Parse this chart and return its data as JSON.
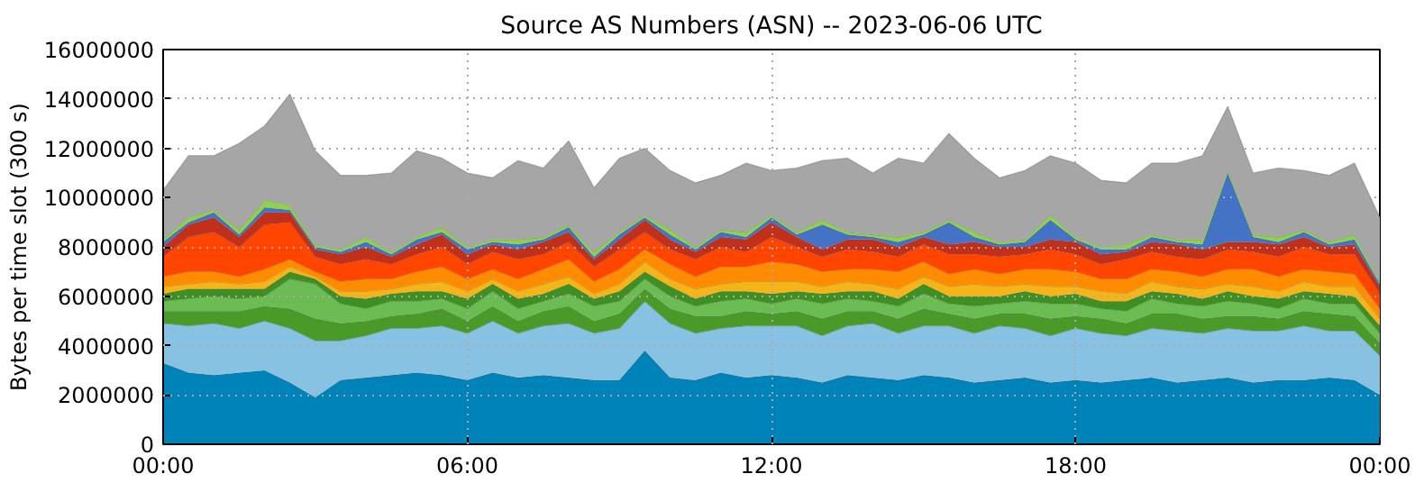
{
  "chart_data": {
    "type": "area",
    "stacked": true,
    "title": "Source AS Numbers (ASN) -- 2023-06-06 UTC",
    "ylabel": "Bytes per time slot (300 s)",
    "x": [
      0,
      0.5,
      1,
      1.5,
      2,
      2.5,
      3,
      3.5,
      4,
      4.5,
      5,
      5.5,
      6,
      6.5,
      7,
      7.5,
      8,
      8.5,
      9,
      9.5,
      10,
      10.5,
      11,
      11.5,
      12,
      12.5,
      13,
      13.5,
      14,
      14.5,
      15,
      15.5,
      16,
      16.5,
      17,
      17.5,
      18,
      18.5,
      19,
      19.5,
      20,
      20.5,
      21,
      21.5,
      22,
      22.5,
      23,
      23.5,
      24
    ],
    "xlim": [
      0,
      24
    ],
    "xticks": [
      {
        "value": 0,
        "label": "00:00"
      },
      {
        "value": 6,
        "label": "06:00"
      },
      {
        "value": 12,
        "label": "12:00"
      },
      {
        "value": 18,
        "label": "18:00"
      },
      {
        "value": 24,
        "label": "00:00"
      }
    ],
    "ylim": [
      0,
      16000000
    ],
    "yticks": [
      0,
      2000000,
      4000000,
      6000000,
      8000000,
      10000000,
      12000000,
      14000000,
      16000000
    ],
    "grid": true,
    "series": [
      {
        "color": "#0083b8",
        "values": [
          3300000.0,
          2900000.0,
          2800000.0,
          2900000.0,
          3000000.0,
          2500000.0,
          1900000.0,
          2600000.0,
          2700000.0,
          2800000.0,
          2900000.0,
          2800000.0,
          2600000.0,
          2900000.0,
          2700000.0,
          2800000.0,
          2700000.0,
          2600000.0,
          2600000.0,
          3800000.0,
          2700000.0,
          2600000.0,
          2900000.0,
          2700000.0,
          2800000.0,
          2700000.0,
          2500000.0,
          2800000.0,
          2700000.0,
          2600000.0,
          2800000.0,
          2700000.0,
          2500000.0,
          2600000.0,
          2700000.0,
          2500000.0,
          2600000.0,
          2500000.0,
          2600000.0,
          2700000.0,
          2500000.0,
          2600000.0,
          2700000.0,
          2500000.0,
          2600000.0,
          2600000.0,
          2700000.0,
          2600000.0,
          2000000.0
        ]
      },
      {
        "color": "#88c2e2",
        "values": [
          1600000.0,
          1900000.0,
          2100000.0,
          1800000.0,
          2000000.0,
          2200000.0,
          2300000.0,
          1600000.0,
          1700000.0,
          1900000.0,
          1800000.0,
          2000000.0,
          1900000.0,
          2100000.0,
          1800000.0,
          2000000.0,
          2200000.0,
          1900000.0,
          2100000.0,
          2000000.0,
          2200000.0,
          1900000.0,
          1800000.0,
          2100000.0,
          2000000.0,
          2100000.0,
          1900000.0,
          2000000.0,
          2200000.0,
          1900000.0,
          2000000.0,
          2100000.0,
          2000000.0,
          2200000.0,
          2000000.0,
          1900000.0,
          2100000.0,
          2000000.0,
          1800000.0,
          2000000.0,
          2100000.0,
          1900000.0,
          2000000.0,
          2100000.0,
          2000000.0,
          2200000.0,
          1900000.0,
          2000000.0,
          1600000.0
        ]
      },
      {
        "color": "#4a9a2a",
        "values": [
          500000.0,
          600000.0,
          500000.0,
          700000.0,
          600000.0,
          800000.0,
          900000.0,
          700000.0,
          600000.0,
          500000.0,
          600000.0,
          700000.0,
          500000.0,
          600000.0,
          500000.0,
          600000.0,
          700000.0,
          500000.0,
          600000.0,
          500000.0,
          600000.0,
          700000.0,
          500000.0,
          600000.0,
          500000.0,
          600000.0,
          700000.0,
          600000.0,
          500000.0,
          600000.0,
          700000.0,
          500000.0,
          600000.0,
          500000.0,
          600000.0,
          700000.0,
          500000.0,
          600000.0,
          500000.0,
          600000.0,
          700000.0,
          600000.0,
          500000.0,
          600000.0,
          500000.0,
          600000.0,
          700000.0,
          600000.0,
          500000.0
        ]
      },
      {
        "color": "#6cbc54",
        "values": [
          400000.0,
          500000.0,
          600000.0,
          500000.0,
          400000.0,
          1200000.0,
          1400000.0,
          800000.0,
          500000.0,
          600000.0,
          500000.0,
          400000.0,
          500000.0,
          600000.0,
          500000.0,
          400000.0,
          500000.0,
          600000.0,
          500000.0,
          400000.0,
          500000.0,
          400000.0,
          600000.0,
          500000.0,
          400000.0,
          500000.0,
          600000.0,
          500000.0,
          400000.0,
          500000.0,
          600000.0,
          400000.0,
          500000.0,
          400000.0,
          500000.0,
          600000.0,
          500000.0,
          400000.0,
          500000.0,
          600000.0,
          400000.0,
          500000.0,
          600000.0,
          500000.0,
          400000.0,
          500000.0,
          400000.0,
          500000.0,
          400000.0
        ]
      },
      {
        "color": "#3f8f25",
        "values": [
          300000.0,
          400000.0,
          300000.0,
          400000.0,
          300000.0,
          300000.0,
          200000.0,
          300000.0,
          400000.0,
          300000.0,
          400000.0,
          300000.0,
          400000.0,
          300000.0,
          400000.0,
          300000.0,
          400000.0,
          300000.0,
          400000.0,
          300000.0,
          400000.0,
          300000.0,
          400000.0,
          300000.0,
          400000.0,
          300000.0,
          400000.0,
          300000.0,
          400000.0,
          300000.0,
          400000.0,
          300000.0,
          400000.0,
          300000.0,
          400000.0,
          300000.0,
          400000.0,
          300000.0,
          400000.0,
          300000.0,
          400000.0,
          300000.0,
          400000.0,
          300000.0,
          400000.0,
          300000.0,
          400000.0,
          300000.0,
          300000.0
        ]
      },
      {
        "color": "#f5b417",
        "values": [
          300000.0,
          200000.0,
          300000.0,
          200000.0,
          300000.0,
          200000.0,
          100000.0,
          200000.0,
          300000.0,
          200000.0,
          300000.0,
          400000.0,
          300000.0,
          200000.0,
          300000.0,
          400000.0,
          300000.0,
          200000.0,
          300000.0,
          400000.0,
          300000.0,
          400000.0,
          300000.0,
          400000.0,
          500000.0,
          400000.0,
          300000.0,
          400000.0,
          300000.0,
          400000.0,
          300000.0,
          400000.0,
          500000.0,
          400000.0,
          300000.0,
          400000.0,
          300000.0,
          400000.0,
          300000.0,
          400000.0,
          300000.0,
          400000.0,
          300000.0,
          400000.0,
          300000.0,
          400000.0,
          300000.0,
          400000.0,
          300000.0
        ]
      },
      {
        "color": "#ff8c00",
        "values": [
          400000.0,
          500000.0,
          400000.0,
          300000.0,
          500000.0,
          300000.0,
          200000.0,
          400000.0,
          500000.0,
          400000.0,
          500000.0,
          600000.0,
          500000.0,
          400000.0,
          500000.0,
          600000.0,
          700000.0,
          500000.0,
          600000.0,
          500000.0,
          600000.0,
          500000.0,
          700000.0,
          600000.0,
          800000.0,
          700000.0,
          600000.0,
          500000.0,
          600000.0,
          700000.0,
          600000.0,
          500000.0,
          600000.0,
          500000.0,
          600000.0,
          700000.0,
          600000.0,
          500000.0,
          600000.0,
          500000.0,
          600000.0,
          500000.0,
          600000.0,
          700000.0,
          600000.0,
          500000.0,
          600000.0,
          500000.0,
          400000.0
        ]
      },
      {
        "color": "#ff4500",
        "values": [
          800000.0,
          1400000.0,
          1600000.0,
          1200000.0,
          1800000.0,
          1500000.0,
          600000.0,
          700000.0,
          800000.0,
          600000.0,
          700000.0,
          800000.0,
          600000.0,
          700000.0,
          800000.0,
          600000.0,
          700000.0,
          600000.0,
          800000.0,
          700000.0,
          600000.0,
          700000.0,
          800000.0,
          600000.0,
          1000000.0,
          700000.0,
          600000.0,
          800000.0,
          700000.0,
          600000.0,
          700000.0,
          800000.0,
          600000.0,
          700000.0,
          600000.0,
          800000.0,
          700000.0,
          600000.0,
          800000.0,
          700000.0,
          600000.0,
          700000.0,
          800000.0,
          700000.0,
          800000.0,
          900000.0,
          700000.0,
          800000.0,
          600000.0
        ]
      },
      {
        "color": "#c0301a",
        "values": [
          400000.0,
          500000.0,
          600000.0,
          400000.0,
          500000.0,
          400000.0,
          300000.0,
          400000.0,
          500000.0,
          300000.0,
          400000.0,
          500000.0,
          400000.0,
          300000.0,
          400000.0,
          500000.0,
          400000.0,
          300000.0,
          400000.0,
          500000.0,
          400000.0,
          300000.0,
          400000.0,
          500000.0,
          600000.0,
          400000.0,
          300000.0,
          400000.0,
          500000.0,
          400000.0,
          300000.0,
          400000.0,
          500000.0,
          400000.0,
          300000.0,
          400000.0,
          500000.0,
          400000.0,
          300000.0,
          400000.0,
          500000.0,
          400000.0,
          300000.0,
          400000.0,
          500000.0,
          400000.0,
          300000.0,
          400000.0,
          300000.0
        ]
      },
      {
        "color": "#4472c4",
        "values": [
          200000.0,
          100000.0,
          200000.0,
          100000.0,
          200000.0,
          100000.0,
          100000.0,
          100000.0,
          200000.0,
          100000.0,
          200000.0,
          100000.0,
          200000.0,
          100000.0,
          200000.0,
          100000.0,
          200000.0,
          100000.0,
          200000.0,
          100000.0,
          200000.0,
          100000.0,
          200000.0,
          100000.0,
          200000.0,
          100000.0,
          1000000.0,
          200000.0,
          100000.0,
          200000.0,
          100000.0,
          900000.0,
          200000.0,
          100000.0,
          200000.0,
          800000.0,
          100000.0,
          200000.0,
          100000.0,
          200000.0,
          100000.0,
          200000.0,
          2800000.0,
          200000.0,
          100000.0,
          200000.0,
          100000.0,
          200000.0,
          100000.0
        ]
      },
      {
        "color": "#8fd14f",
        "values": [
          100000.0,
          200000.0,
          100000.0,
          200000.0,
          300000.0,
          200000.0,
          100000.0,
          100000.0,
          200000.0,
          100000.0,
          100000.0,
          200000.0,
          100000.0,
          100000.0,
          200000.0,
          100000.0,
          100000.0,
          200000.0,
          100000.0,
          100000.0,
          200000.0,
          100000.0,
          100000.0,
          200000.0,
          100000.0,
          100000.0,
          200000.0,
          100000.0,
          100000.0,
          200000.0,
          100000.0,
          100000.0,
          200000.0,
          100000.0,
          100000.0,
          200000.0,
          100000.0,
          100000.0,
          200000.0,
          100000.0,
          100000.0,
          200000.0,
          100000.0,
          100000.0,
          200000.0,
          100000.0,
          100000.0,
          200000.0,
          100000.0
        ]
      },
      {
        "color": "#a6a6a6",
        "values": [
          2000000.0,
          2500000.0,
          2200000.0,
          3500000.0,
          3000000.0,
          4500000.0,
          3800000.0,
          3000000.0,
          2500000.0,
          3200000.0,
          3500000.0,
          2800000.0,
          3000000.0,
          2500000.0,
          3200000.0,
          2800000.0,
          3400000.0,
          2600000.0,
          3000000.0,
          2700000.0,
          2400000.0,
          2600000.0,
          2200000.0,
          2800000.0,
          1800000.0,
          2600000.0,
          2400000.0,
          3000000.0,
          2500000.0,
          3200000.0,
          2800000.0,
          3500000.0,
          3000000.0,
          2600000.0,
          2800000.0,
          2400000.0,
          3000000.0,
          2700000.0,
          2500000.0,
          2900000.0,
          3100000.0,
          3400000.0,
          2600000.0,
          2500000.0,
          2800000.0,
          2400000.0,
          2700000.0,
          2900000.0,
          2600000.0
        ]
      }
    ]
  }
}
